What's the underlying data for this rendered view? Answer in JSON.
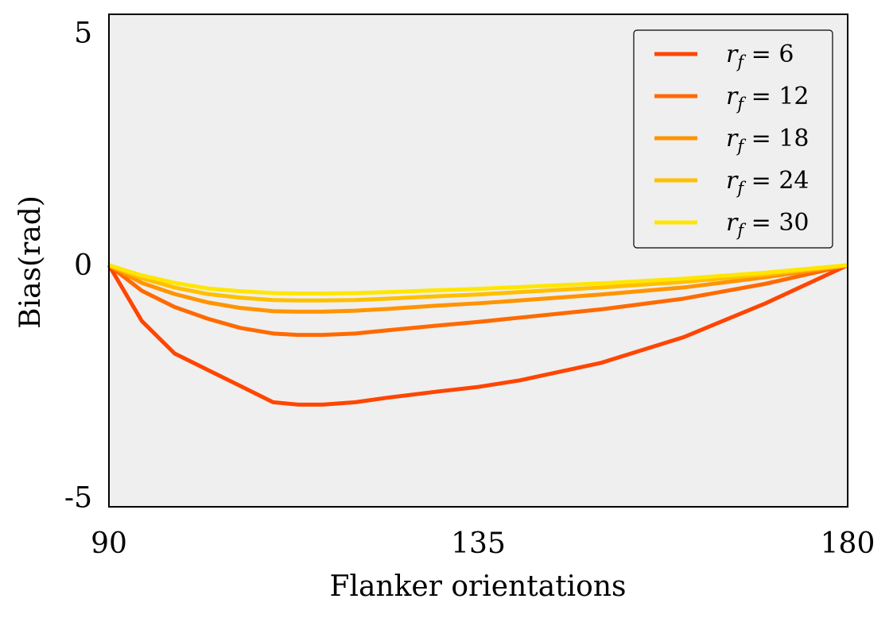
{
  "chart_data": {
    "type": "line",
    "xlabel": "Flanker orientations",
    "ylabel": "Bias(rad)",
    "xlim": [
      90,
      180
    ],
    "ylim": [
      -5.2,
      5.4
    ],
    "xticks": [
      90,
      135,
      180
    ],
    "xtick_labels": [
      "90",
      "135",
      "180"
    ],
    "yticks": [
      5,
      0,
      -5
    ],
    "ytick_labels": [
      "5",
      "0",
      "-5"
    ],
    "grid": false,
    "legend_position": "top-right",
    "plot_background": "#efefef",
    "x": [
      90,
      94,
      98,
      102,
      106,
      110,
      113,
      116,
      120,
      124,
      130,
      135,
      140,
      150,
      160,
      170,
      180
    ],
    "series": [
      {
        "name": "r_f = 6",
        "color": "#ff4500",
        "values": [
          0,
          -1.2,
          -1.9,
          -2.25,
          -2.6,
          -2.95,
          -3.0,
          -3.0,
          -2.95,
          -2.85,
          -2.72,
          -2.62,
          -2.48,
          -2.1,
          -1.55,
          -0.82,
          0
        ]
      },
      {
        "name": "r_f = 12",
        "color": "#ff6a00",
        "values": [
          0,
          -0.55,
          -0.9,
          -1.15,
          -1.35,
          -1.47,
          -1.5,
          -1.5,
          -1.47,
          -1.4,
          -1.3,
          -1.22,
          -1.13,
          -0.95,
          -0.72,
          -0.4,
          0
        ]
      },
      {
        "name": "r_f = 18",
        "color": "#ff9400",
        "values": [
          0,
          -0.38,
          -0.62,
          -0.8,
          -0.92,
          -0.99,
          -1.0,
          -1.0,
          -0.98,
          -0.94,
          -0.87,
          -0.82,
          -0.76,
          -0.63,
          -0.48,
          -0.26,
          0
        ]
      },
      {
        "name": "r_f = 24",
        "color": "#ffbf00",
        "values": [
          0,
          -0.28,
          -0.48,
          -0.62,
          -0.7,
          -0.75,
          -0.76,
          -0.76,
          -0.75,
          -0.72,
          -0.67,
          -0.63,
          -0.58,
          -0.48,
          -0.36,
          -0.2,
          0
        ]
      },
      {
        "name": "r_f = 30",
        "color": "#ffe600",
        "values": [
          0,
          -0.22,
          -0.38,
          -0.5,
          -0.56,
          -0.6,
          -0.61,
          -0.61,
          -0.6,
          -0.58,
          -0.54,
          -0.51,
          -0.47,
          -0.39,
          -0.29,
          -0.16,
          0
        ]
      }
    ],
    "legend": [
      {
        "var": "r",
        "sub": "f",
        "value": "6"
      },
      {
        "var": "r",
        "sub": "f",
        "value": "12"
      },
      {
        "var": "r",
        "sub": "f",
        "value": "18"
      },
      {
        "var": "r",
        "sub": "f",
        "value": "24"
      },
      {
        "var": "r",
        "sub": "f",
        "value": "30"
      }
    ]
  }
}
